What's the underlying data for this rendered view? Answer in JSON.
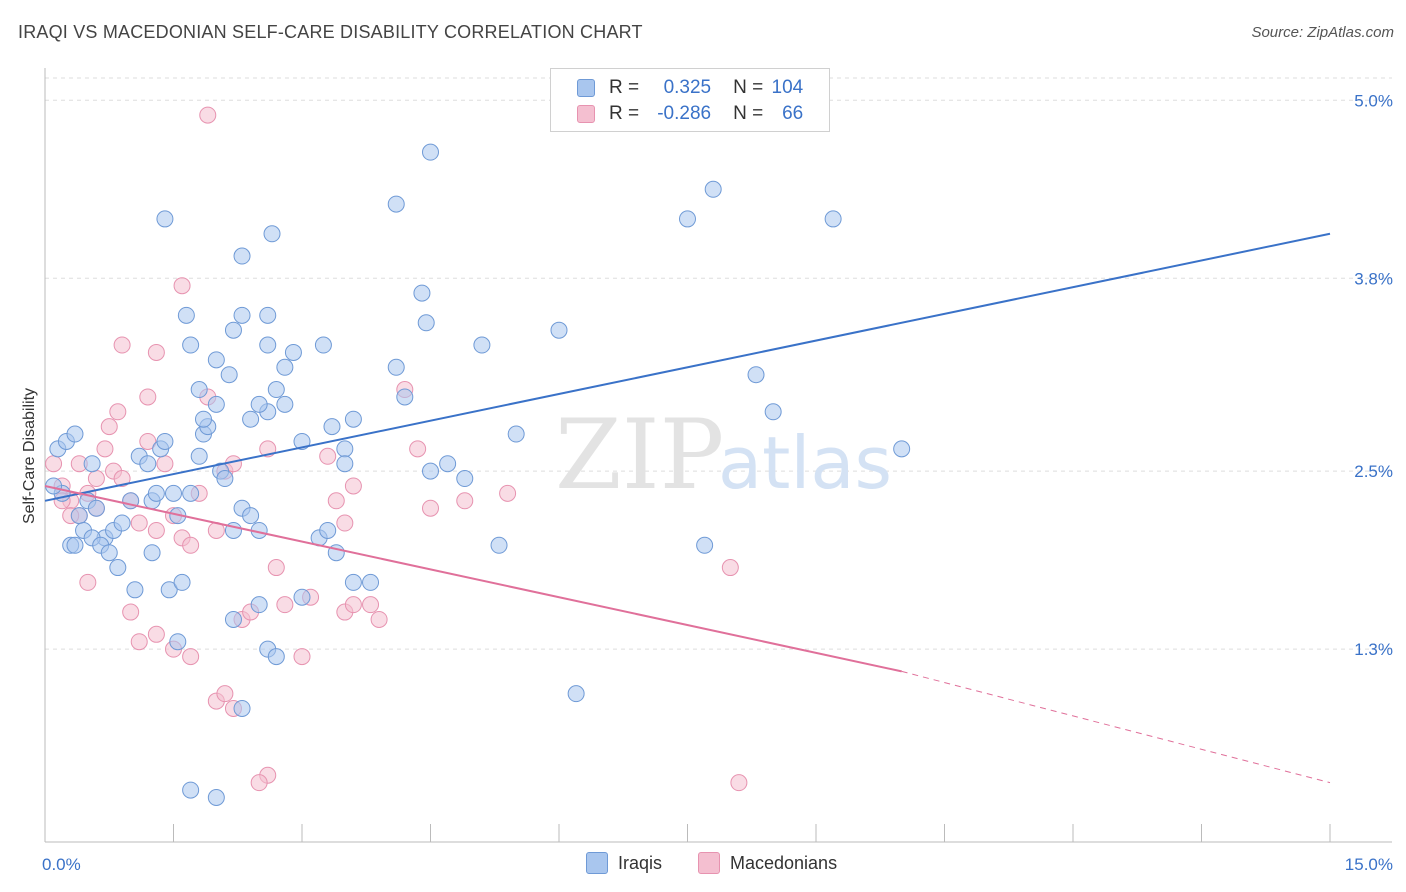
{
  "title": "IRAQI VS MACEDONIAN SELF-CARE DISABILITY CORRELATION CHART",
  "source": "Source: ZipAtlas.com",
  "watermark": {
    "zip": "ZIP",
    "atlas": "atlas"
  },
  "colors": {
    "blue_fill": "#a9c6ee",
    "blue_stroke": "#6f9ad6",
    "blue_line": "#3a72c8",
    "pink_fill": "#f4bfd0",
    "pink_stroke": "#e793b0",
    "pink_line": "#e0709a",
    "axis_text": "#3a72c8",
    "grid": "#dddddd"
  },
  "legend": {
    "rows": [
      {
        "r_label": "R =",
        "r_value": "0.325",
        "n_label": "N =",
        "n_value": "104"
      },
      {
        "r_label": "R =",
        "r_value": "-0.286",
        "n_label": "N =",
        "n_value": "66"
      }
    ]
  },
  "bottom_legend": [
    "Iraqis",
    "Macedonians"
  ],
  "chart_data": {
    "type": "scatter",
    "title": "IRAQI VS MACEDONIAN SELF-CARE DISABILITY CORRELATION CHART",
    "xlabel": "",
    "ylabel": "Self-Care Disability",
    "xlim": [
      0,
      15
    ],
    "ylim": [
      0,
      5.15
    ],
    "x_tick_labels": [
      "0.0%",
      "15.0%"
    ],
    "y_ticks": [
      1.3,
      2.5,
      3.8,
      5.0
    ],
    "y_tick_labels": [
      "1.3%",
      "2.5%",
      "3.8%",
      "5.0%"
    ],
    "grid": "horizontal dashed",
    "legend_position": "top-center",
    "series": [
      {
        "name": "Iraqis",
        "r": 0.325,
        "n": 104,
        "trend": {
          "x": [
            0,
            15
          ],
          "y": [
            2.3,
            4.1
          ]
        },
        "points": [
          [
            0.15,
            2.65
          ],
          [
            0.25,
            2.7
          ],
          [
            0.35,
            2.75
          ],
          [
            0.4,
            2.2
          ],
          [
            0.5,
            2.3
          ],
          [
            0.6,
            2.25
          ],
          [
            0.7,
            2.05
          ],
          [
            0.8,
            2.1
          ],
          [
            0.9,
            2.15
          ],
          [
            1.0,
            2.3
          ],
          [
            1.1,
            2.6
          ],
          [
            1.2,
            2.55
          ],
          [
            1.25,
            2.3
          ],
          [
            1.3,
            2.35
          ],
          [
            1.35,
            2.65
          ],
          [
            1.4,
            2.7
          ],
          [
            1.5,
            2.35
          ],
          [
            1.55,
            2.2
          ],
          [
            1.7,
            2.35
          ],
          [
            1.8,
            2.6
          ],
          [
            1.85,
            2.75
          ],
          [
            1.9,
            2.8
          ],
          [
            2.0,
            2.95
          ],
          [
            2.05,
            2.5
          ],
          [
            2.1,
            2.45
          ],
          [
            2.2,
            2.1
          ],
          [
            2.3,
            2.25
          ],
          [
            2.4,
            2.2
          ],
          [
            2.5,
            2.1
          ],
          [
            2.6,
            2.9
          ],
          [
            2.7,
            3.05
          ],
          [
            2.8,
            3.2
          ],
          [
            2.9,
            3.3
          ],
          [
            0.2,
            2.35
          ],
          [
            0.3,
            2.0
          ],
          [
            0.45,
            2.1
          ],
          [
            0.55,
            2.05
          ],
          [
            0.65,
            2.0
          ],
          [
            0.75,
            1.95
          ],
          [
            1.45,
            1.7
          ],
          [
            1.6,
            1.75
          ],
          [
            1.65,
            3.55
          ],
          [
            1.7,
            3.35
          ],
          [
            1.8,
            3.05
          ],
          [
            1.85,
            2.85
          ],
          [
            2.0,
            3.25
          ],
          [
            2.15,
            3.15
          ],
          [
            2.2,
            3.45
          ],
          [
            2.4,
            2.85
          ],
          [
            2.5,
            2.95
          ],
          [
            2.6,
            3.35
          ],
          [
            2.8,
            2.95
          ],
          [
            3.0,
            2.7
          ],
          [
            3.2,
            2.05
          ],
          [
            3.3,
            2.1
          ],
          [
            3.4,
            1.95
          ],
          [
            3.6,
            2.85
          ],
          [
            3.8,
            1.75
          ],
          [
            4.1,
            3.2
          ],
          [
            4.2,
            3.0
          ],
          [
            4.45,
            3.5
          ],
          [
            4.5,
            2.5
          ],
          [
            4.7,
            2.55
          ],
          [
            3.35,
            2.8
          ],
          [
            3.5,
            2.65
          ],
          [
            3.25,
            3.35
          ],
          [
            2.3,
            3.55
          ],
          [
            2.6,
            3.55
          ],
          [
            3.5,
            2.55
          ],
          [
            1.4,
            4.2
          ],
          [
            2.3,
            3.95
          ],
          [
            2.65,
            4.1
          ],
          [
            4.1,
            4.3
          ],
          [
            4.5,
            4.65
          ],
          [
            7.5,
            4.2
          ],
          [
            7.8,
            4.4
          ],
          [
            9.2,
            4.2
          ],
          [
            4.4,
            3.7
          ],
          [
            5.1,
            3.35
          ],
          [
            6.0,
            3.45
          ],
          [
            8.3,
            3.15
          ],
          [
            8.5,
            2.9
          ],
          [
            10.0,
            2.65
          ],
          [
            5.5,
            2.75
          ],
          [
            4.9,
            2.45
          ],
          [
            5.3,
            2.0
          ],
          [
            7.7,
            2.0
          ],
          [
            3.6,
            1.75
          ],
          [
            3.0,
            1.65
          ],
          [
            2.5,
            1.6
          ],
          [
            2.2,
            1.5
          ],
          [
            2.6,
            1.3
          ],
          [
            2.7,
            1.25
          ],
          [
            2.3,
            0.9
          ],
          [
            6.2,
            1.0
          ],
          [
            1.7,
            0.35
          ],
          [
            2.0,
            0.3
          ],
          [
            1.55,
            1.35
          ],
          [
            0.55,
            2.55
          ],
          [
            0.35,
            2.0
          ],
          [
            0.85,
            1.85
          ],
          [
            1.05,
            1.7
          ],
          [
            1.25,
            1.95
          ],
          [
            0.1,
            2.4
          ]
        ]
      },
      {
        "name": "Macedonians",
        "r": -0.286,
        "n": 66,
        "trend": {
          "x": [
            0,
            10
          ],
          "y": [
            2.4,
            1.15
          ]
        },
        "trend_dashed": {
          "x": [
            10,
            15
          ],
          "y": [
            1.15,
            0.4
          ]
        },
        "points": [
          [
            0.1,
            2.55
          ],
          [
            0.2,
            2.4
          ],
          [
            0.3,
            2.3
          ],
          [
            0.4,
            2.2
          ],
          [
            0.5,
            2.35
          ],
          [
            0.6,
            2.25
          ],
          [
            0.7,
            2.65
          ],
          [
            0.8,
            2.5
          ],
          [
            0.9,
            2.45
          ],
          [
            1.0,
            2.3
          ],
          [
            1.1,
            2.15
          ],
          [
            1.2,
            2.7
          ],
          [
            1.3,
            2.1
          ],
          [
            1.4,
            2.55
          ],
          [
            1.5,
            2.2
          ],
          [
            1.6,
            2.05
          ],
          [
            1.7,
            2.0
          ],
          [
            1.8,
            2.35
          ],
          [
            1.9,
            3.0
          ],
          [
            2.0,
            2.1
          ],
          [
            2.1,
            2.5
          ],
          [
            0.9,
            3.35
          ],
          [
            1.3,
            3.3
          ],
          [
            1.2,
            3.0
          ],
          [
            0.85,
            2.9
          ],
          [
            0.75,
            2.8
          ],
          [
            1.6,
            3.75
          ],
          [
            1.9,
            4.9
          ],
          [
            2.2,
            2.55
          ],
          [
            2.6,
            2.65
          ],
          [
            3.3,
            2.6
          ],
          [
            3.4,
            2.3
          ],
          [
            3.6,
            2.4
          ],
          [
            3.5,
            2.15
          ],
          [
            4.2,
            3.05
          ],
          [
            4.35,
            2.65
          ],
          [
            4.5,
            2.25
          ],
          [
            4.9,
            2.3
          ],
          [
            5.4,
            2.35
          ],
          [
            2.7,
            1.85
          ],
          [
            3.1,
            1.65
          ],
          [
            3.5,
            1.55
          ],
          [
            3.6,
            1.6
          ],
          [
            3.8,
            1.6
          ],
          [
            3.9,
            1.5
          ],
          [
            1.0,
            1.55
          ],
          [
            1.1,
            1.35
          ],
          [
            1.3,
            1.4
          ],
          [
            1.5,
            1.3
          ],
          [
            1.7,
            1.25
          ],
          [
            2.0,
            0.95
          ],
          [
            2.1,
            1.0
          ],
          [
            2.2,
            0.9
          ],
          [
            2.6,
            0.45
          ],
          [
            2.5,
            0.4
          ],
          [
            3.0,
            1.25
          ],
          [
            2.8,
            1.6
          ],
          [
            2.3,
            1.5
          ],
          [
            2.4,
            1.55
          ],
          [
            8.0,
            1.85
          ],
          [
            8.1,
            0.4
          ],
          [
            0.5,
            1.75
          ],
          [
            0.3,
            2.2
          ],
          [
            0.2,
            2.3
          ],
          [
            0.6,
            2.45
          ],
          [
            0.4,
            2.55
          ]
        ]
      }
    ]
  }
}
